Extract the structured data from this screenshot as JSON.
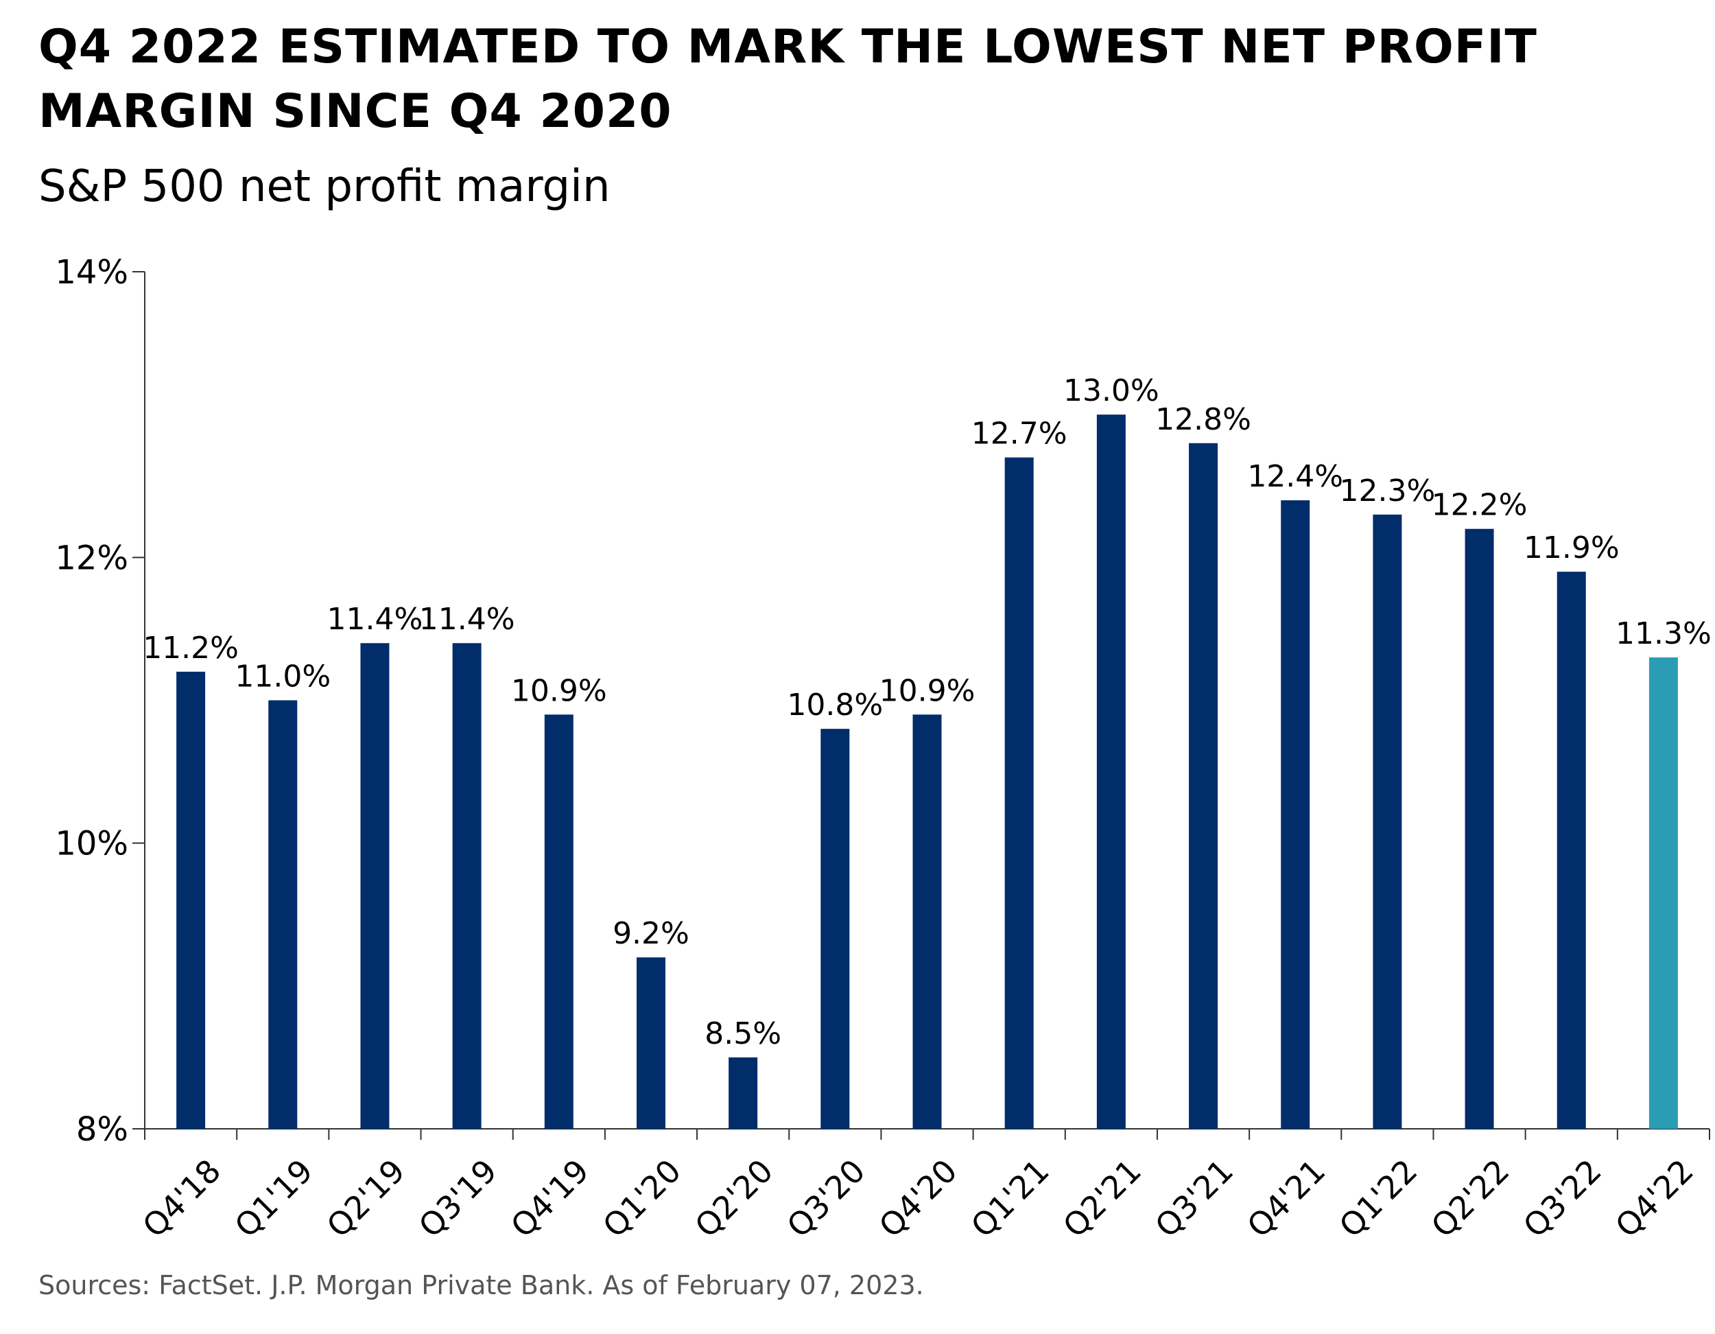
{
  "chart_data": {
    "type": "bar",
    "title": "Q4 2022 ESTIMATED TO MARK THE LOWEST NET PROFIT MARGIN SINCE Q4 2020",
    "subtitle": "S&P 500 net profit margin",
    "categories": [
      "Q4'18",
      "Q1'19",
      "Q2'19",
      "Q3'19",
      "Q4'19",
      "Q1'20",
      "Q2'20",
      "Q3'20",
      "Q4'20",
      "Q1'21",
      "Q2'21",
      "Q3'21",
      "Q4'21",
      "Q1'22",
      "Q2'22",
      "Q3'22",
      "Q4'22"
    ],
    "values": [
      11.2,
      11.0,
      11.4,
      11.4,
      10.9,
      9.2,
      8.5,
      10.8,
      10.9,
      12.7,
      13.0,
      12.8,
      12.4,
      12.3,
      12.2,
      11.9,
      11.3
    ],
    "data_labels": [
      "11.2%",
      "11.0%",
      "11.4%",
      "11.4%",
      "10.9%",
      "9.2%",
      "8.5%",
      "10.8%",
      "10.9%",
      "12.7%",
      "13.0%",
      "12.8%",
      "12.4%",
      "12.3%",
      "12.2%",
      "11.9%",
      "11.3%"
    ],
    "xlabel": "",
    "ylabel": "",
    "ylim": [
      8,
      14
    ],
    "yticks": [
      8,
      10,
      12,
      14
    ],
    "ytick_labels": [
      "8%",
      "10%",
      "12%",
      "14%"
    ],
    "grid": false,
    "legend": "none",
    "colors": {
      "bar": "#022d6b",
      "highlight_bar": "#2a9db5",
      "axis": "#333333"
    },
    "highlight_index": 16
  },
  "source": "Sources: FactSet. J.P. Morgan Private Bank. As of February 07, 2023."
}
